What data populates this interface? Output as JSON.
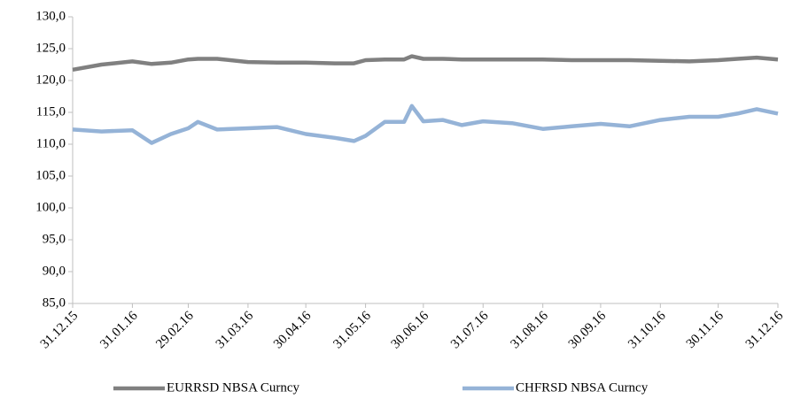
{
  "chart_data": {
    "type": "line",
    "x": [
      "31.12.15",
      "15.01.16",
      "31.01.16",
      "10.02.16",
      "20.02.16",
      "29.02.16",
      "05.03.16",
      "15.03.16",
      "31.03.16",
      "15.04.16",
      "30.04.16",
      "15.05.16",
      "25.05.16",
      "31.05.16",
      "10.06.16",
      "20.06.16",
      "24.06.16",
      "30.06.16",
      "10.07.16",
      "20.07.16",
      "31.07.16",
      "15.08.16",
      "31.08.16",
      "15.09.16",
      "30.09.16",
      "15.10.16",
      "31.10.16",
      "15.11.16",
      "30.11.16",
      "10.12.16",
      "20.12.16",
      "31.12.16"
    ],
    "series": [
      {
        "name": "EURRSD NBSA Curncy",
        "color": "#808080",
        "values": [
          121.7,
          122.5,
          123.0,
          122.6,
          122.8,
          123.3,
          123.4,
          123.4,
          122.9,
          122.8,
          122.8,
          122.7,
          122.7,
          123.2,
          123.3,
          123.3,
          123.8,
          123.4,
          123.4,
          123.3,
          123.3,
          123.3,
          123.3,
          123.2,
          123.2,
          123.2,
          123.1,
          123.0,
          123.2,
          123.4,
          123.6,
          123.3
        ]
      },
      {
        "name": "CHFRSD NBSA Curncy",
        "color": "#95b3d7",
        "values": [
          112.3,
          112.0,
          112.2,
          110.2,
          111.6,
          112.5,
          113.5,
          112.3,
          112.5,
          112.7,
          111.6,
          111.0,
          110.5,
          111.3,
          113.5,
          113.5,
          116.0,
          113.6,
          113.8,
          113.0,
          113.6,
          113.3,
          112.4,
          112.8,
          113.2,
          112.8,
          113.8,
          114.3,
          114.3,
          114.8,
          115.5,
          114.8
        ]
      }
    ],
    "xlim": [
      "31.12.15",
      "31.12.16"
    ],
    "xticks": [
      "31.12.15",
      "31.01.16",
      "29.02.16",
      "31.03.16",
      "30.04.16",
      "31.05.16",
      "30.06.16",
      "31.07.16",
      "31.08.16",
      "30.09.16",
      "31.10.16",
      "30.11.16",
      "31.12.16"
    ],
    "ylim": [
      85,
      130
    ],
    "yticks": [
      {
        "value": 85,
        "label": "85,0"
      },
      {
        "value": 90,
        "label": "90,0"
      },
      {
        "value": 95,
        "label": "95,0"
      },
      {
        "value": 100,
        "label": "100,0"
      },
      {
        "value": 105,
        "label": "105,0"
      },
      {
        "value": 110,
        "label": "110,0"
      },
      {
        "value": 115,
        "label": "115,0"
      },
      {
        "value": 120,
        "label": "120,0"
      },
      {
        "value": 125,
        "label": "125,0"
      },
      {
        "value": 130,
        "label": "130,0"
      }
    ],
    "legend": "bottom"
  }
}
